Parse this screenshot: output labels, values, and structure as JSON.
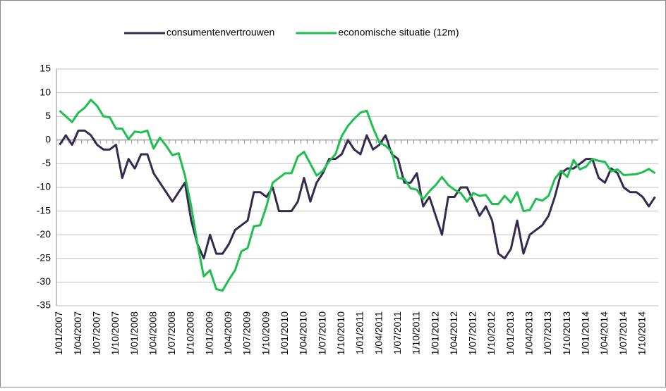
{
  "chart_data": {
    "type": "line",
    "categories": [
      "1/01/2007",
      null,
      null,
      "1/04/2007",
      null,
      null,
      "1/07/2007",
      null,
      null,
      "1/10/2007",
      null,
      null,
      "1/01/2008",
      null,
      null,
      "1/04/2008",
      null,
      null,
      "1/07/2008",
      null,
      null,
      "1/10/2008",
      null,
      null,
      "1/01/2009",
      null,
      null,
      "1/04/2009",
      null,
      null,
      "1/07/2009",
      null,
      null,
      "1/10/2009",
      null,
      null,
      "1/01/2010",
      null,
      null,
      "1/04/2010",
      null,
      null,
      "1/07/2010",
      null,
      null,
      "1/10/2010",
      null,
      null,
      "1/01/2011",
      null,
      null,
      "1/04/2011",
      null,
      null,
      "1/07/2011",
      null,
      null,
      "1/10/2011",
      null,
      null,
      "1/01/2012",
      null,
      null,
      "1/04/2012",
      null,
      null,
      "1/07/2012",
      null,
      null,
      "1/10/2012",
      null,
      null,
      "1/01/2013",
      null,
      null,
      "1/04/2013",
      null,
      null,
      "1/07/2013",
      null,
      null,
      "1/10/2013",
      null,
      null,
      "1/01/2014",
      null,
      null,
      "1/04/2014",
      null,
      null,
      "1/07/2014",
      null,
      null,
      "1/10/2014",
      null,
      null
    ],
    "series": [
      {
        "name": "consumentenvertrouwen",
        "color": "#352a4e",
        "values": [
          -1,
          1,
          -1,
          2,
          2,
          1,
          -1,
          -2,
          -2,
          -1,
          -8,
          -4,
          -6,
          -3,
          -3,
          -7,
          -9,
          -11,
          -13,
          -11,
          -9,
          -17,
          -22,
          -25,
          -20,
          -24,
          -24,
          -22,
          -19,
          -18,
          -17,
          -11,
          -11,
          -12,
          -10,
          -15,
          -15,
          -15,
          -13,
          -8,
          -13,
          -9,
          -7,
          -4,
          -4,
          -3,
          0,
          -2,
          -3,
          1,
          -2,
          -1,
          1,
          -3,
          -4,
          -9,
          -9,
          -7,
          -14,
          -12,
          -16,
          -20,
          -12,
          -12,
          -10,
          -10,
          -13,
          -16,
          -14,
          -17,
          -24,
          -25,
          -23,
          -17,
          -24,
          -20,
          -19,
          -18,
          -16,
          -12,
          -7,
          -6,
          -6,
          -5,
          -4,
          -4,
          -8,
          -9,
          -6,
          -7,
          -10,
          -11,
          -11,
          -12,
          -14,
          -12
        ]
      },
      {
        "name": "economische situatie (12m)",
        "color": "#1dbf4e",
        "values": [
          6.2,
          5,
          3.8,
          5.8,
          6.8,
          8.5,
          7.2,
          5,
          4.8,
          2.4,
          2.4,
          0.2,
          1.8,
          1.6,
          2,
          -1.8,
          0.5,
          -1.2,
          -3.2,
          -2.8,
          -7.5,
          -14,
          -22,
          -28.8,
          -27.5,
          -31.5,
          -31.8,
          -29.5,
          -27.5,
          -23.5,
          -22.8,
          -18.2,
          -18,
          -14,
          -9,
          -8,
          -7,
          -7,
          -3.5,
          -2.5,
          -5,
          -7.5,
          -6.5,
          -4.5,
          -3,
          0.8,
          3,
          4.5,
          5.8,
          6.2,
          2.6,
          -0.5,
          -1.2,
          -2.5,
          -8,
          -8.2,
          -10.2,
          -10.5,
          -12.5,
          -10.8,
          -9.5,
          -7.8,
          -9.5,
          -10.5,
          -11.2,
          -13,
          -11.2,
          -11.8,
          -11.6,
          -13.5,
          -13.5,
          -11.8,
          -13.2,
          -11,
          -15,
          -14.8,
          -12.4,
          -12.8,
          -11.8,
          -8.2,
          -6.5,
          -7.8,
          -4.2,
          -6.2,
          -5.6,
          -4,
          -4.4,
          -4.6,
          -6.6,
          -6.2,
          -7.4,
          -7.3,
          -7.2,
          -6.8,
          -6.1,
          -7
        ]
      }
    ],
    "ylim": [
      -35,
      15
    ],
    "yticks": [
      -35,
      -30,
      -25,
      -20,
      -15,
      -10,
      -5,
      0,
      5,
      10,
      15
    ],
    "grid": true,
    "legend": "top"
  }
}
